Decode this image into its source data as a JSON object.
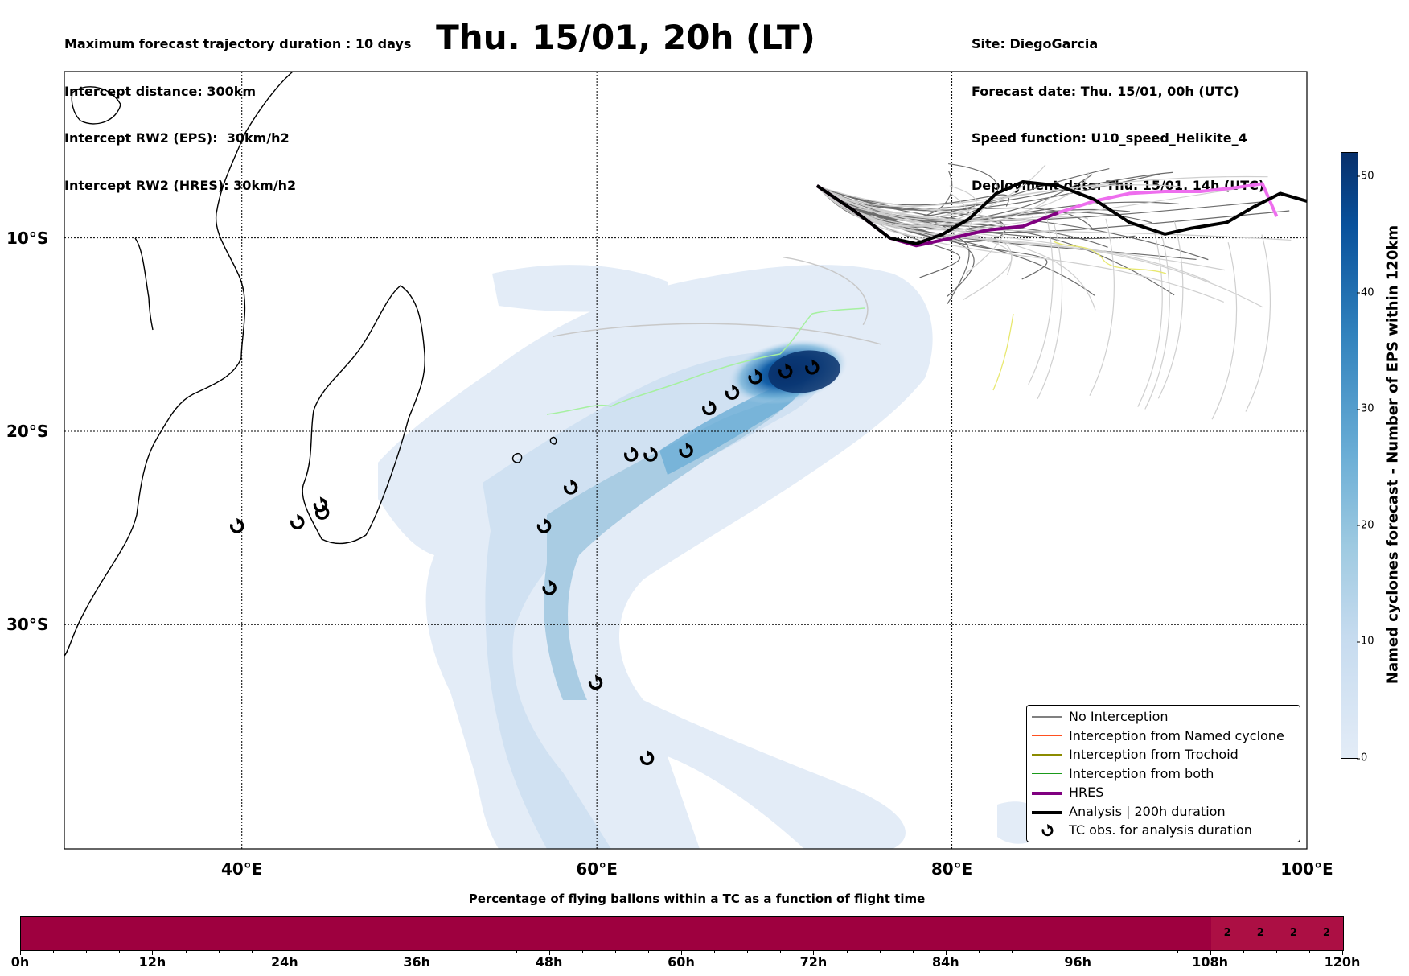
{
  "header": {
    "left_lines": [
      "Maximum forecast trajectory duration : 10 days",
      "Intercept distance: 300km",
      "Intercept RW2 (EPS):  30km/h2",
      "Intercept RW2 (HRES): 30km/h2"
    ],
    "title": "Thu. 15/01, 20h (LT)",
    "right_lines": [
      "Site: DiegoGarcia",
      "Forecast date: Thu. 15/01, 00h (UTC)",
      "Speed function: U10_speed_Helikite_4",
      "Deployment date: Thu. 15/01, 14h (UTC)"
    ]
  },
  "map": {
    "lon_range": [
      30,
      100
    ],
    "lat_range": [
      -1.4,
      -41.6
    ],
    "lon_ticks": [
      {
        "value": 40,
        "label": "40°E"
      },
      {
        "value": 60,
        "label": "60°E"
      },
      {
        "value": 80,
        "label": "80°E"
      },
      {
        "value": 100,
        "label": "100°E"
      }
    ],
    "lat_ticks": [
      {
        "value": -10,
        "label": "10°S"
      },
      {
        "value": -20,
        "label": "20°S"
      },
      {
        "value": -30,
        "label": "30°S"
      }
    ],
    "launch_site": {
      "lon": 72.4,
      "lat": -7.3
    },
    "tc_observations": [
      {
        "lon": 39.7,
        "lat": -24.9
      },
      {
        "lon": 43.1,
        "lat": -24.7
      },
      {
        "lon": 44.4,
        "lat": -23.8
      },
      {
        "lon": 44.5,
        "lat": -24.2
      },
      {
        "lon": 57.0,
        "lat": -24.9
      },
      {
        "lon": 58.5,
        "lat": -22.9
      },
      {
        "lon": 57.3,
        "lat": -28.1
      },
      {
        "lon": 59.9,
        "lat": -33.0
      },
      {
        "lon": 62.8,
        "lat": -36.9
      },
      {
        "lon": 61.9,
        "lat": -21.2
      },
      {
        "lon": 63.0,
        "lat": -21.2
      },
      {
        "lon": 65.0,
        "lat": -21.0
      },
      {
        "lon": 66.3,
        "lat": -18.8
      },
      {
        "lon": 67.6,
        "lat": -18.0
      },
      {
        "lon": 68.9,
        "lat": -17.2
      },
      {
        "lon": 70.6,
        "lat": -16.9
      },
      {
        "lon": 72.1,
        "lat": -16.7
      }
    ],
    "analysis_track": [
      [
        72.4,
        -7.3
      ],
      [
        74.5,
        -8.6
      ],
      [
        76.5,
        -10.0
      ],
      [
        78.0,
        -10.3
      ],
      [
        79.5,
        -9.8
      ],
      [
        81.0,
        -9.0
      ],
      [
        82.5,
        -7.7
      ],
      [
        84.0,
        -7.1
      ],
      [
        86.0,
        -7.3
      ],
      [
        88.0,
        -8.0
      ],
      [
        90.0,
        -9.2
      ],
      [
        92.0,
        -9.8
      ],
      [
        93.5,
        -9.5
      ],
      [
        95.5,
        -9.2
      ],
      [
        97.0,
        -8.4
      ],
      [
        98.5,
        -7.7
      ],
      [
        100.0,
        -8.1
      ]
    ],
    "hres_track": [
      [
        72.4,
        -7.3
      ],
      [
        74.5,
        -8.6
      ],
      [
        76.5,
        -10.0
      ],
      [
        78.0,
        -10.4
      ],
      [
        80.0,
        -10.0
      ],
      [
        82.0,
        -9.6
      ],
      [
        84.0,
        -9.4
      ],
      [
        86.0,
        -8.7
      ],
      [
        88.0,
        -8.1
      ],
      [
        90.0,
        -7.7
      ],
      [
        92.0,
        -7.6
      ],
      [
        94.0,
        -7.6
      ],
      [
        96.0,
        -7.4
      ],
      [
        97.5,
        -7.2
      ],
      [
        98.3,
        -8.9
      ]
    ]
  },
  "legend": {
    "items": [
      {
        "label": "No Interception",
        "color": "#808080",
        "kind": "thin"
      },
      {
        "label": "Interception from Named cyclone",
        "color": "#ff5020",
        "kind": "thin"
      },
      {
        "label": "Interception from Trochoid",
        "color": "#8b8b00",
        "kind": "thin"
      },
      {
        "label": "Interception from both",
        "color": "#1a9a1a",
        "kind": "thin"
      },
      {
        "label": "HRES",
        "color": "#800080",
        "kind": "thick"
      },
      {
        "label": "Analysis | 200h duration",
        "color": "#000000",
        "kind": "thick"
      },
      {
        "label": "TC obs. for analysis duration",
        "color": "#000000",
        "kind": "marker"
      }
    ]
  },
  "colorbar": {
    "title": "Named cyclones forecast - Number of EPS within 120km",
    "min": 0,
    "max": 52,
    "ticks": [
      0,
      10,
      20,
      30,
      40,
      50
    ],
    "color_low": "#e3ecf7",
    "color_high": "#08306b"
  },
  "flight_time_bar": {
    "title": "Percentage of flying ballons within a TC as a function of flight time",
    "color_main": "#9e003f",
    "color_late": "#ac0f44",
    "ticks": [
      "0h",
      "12h",
      "24h",
      "36h",
      "48h",
      "60h",
      "72h",
      "84h",
      "96h",
      "108h",
      "120h"
    ],
    "late_segment_start_h": 108,
    "segment_values": [
      {
        "hour": 111,
        "label": "2"
      },
      {
        "hour": 114,
        "label": "2"
      },
      {
        "hour": 117,
        "label": "2"
      },
      {
        "hour": 120,
        "label": "2"
      }
    ]
  }
}
